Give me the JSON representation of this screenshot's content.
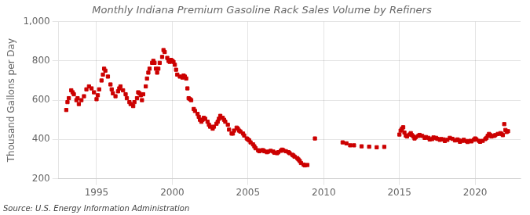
{
  "chart_data": {
    "type": "scatter",
    "title": "Monthly Indiana Premium Gasoline Rack Sales Volume by Refiners",
    "ylabel": "Thousand Gallons per Day",
    "annotations": [
      "Source: U.S. Energy Information Administration"
    ],
    "color": "#cc0000",
    "marker": "square",
    "grid": true,
    "xlim": [
      1992.5,
      2023.0
    ],
    "ylim": [
      200,
      1000
    ],
    "xticks": [
      1995,
      2000,
      2005,
      2010,
      2015,
      2020
    ],
    "yticks": [
      200,
      400,
      600,
      800,
      {
        "value": 1000,
        "label": "1,000"
      }
    ],
    "x": [
      1993.0,
      1993.08,
      1993.17,
      1993.33,
      1993.42,
      1993.5,
      1993.67,
      1993.75,
      1993.83,
      1994.0,
      1994.17,
      1994.33,
      1994.5,
      1994.67,
      1994.83,
      1995.0,
      1995.08,
      1995.17,
      1995.33,
      1995.42,
      1995.5,
      1995.58,
      1995.75,
      1995.92,
      1996.0,
      1996.08,
      1996.25,
      1996.42,
      1996.5,
      1996.58,
      1996.75,
      1996.92,
      1997.0,
      1997.17,
      1997.25,
      1997.42,
      1997.5,
      1997.67,
      1997.75,
      1997.83,
      1997.92,
      1998.0,
      1998.08,
      1998.25,
      1998.33,
      1998.42,
      1998.5,
      1998.67,
      1998.75,
      1998.83,
      1998.92,
      1999.0,
      1999.08,
      1999.17,
      1999.33,
      1999.42,
      1999.5,
      1999.67,
      1999.75,
      1999.83,
      1999.92,
      2000.0,
      2000.08,
      2000.17,
      2000.25,
      2000.33,
      2000.5,
      2000.67,
      2000.75,
      2000.83,
      2000.92,
      2001.0,
      2001.08,
      2001.17,
      2001.25,
      2001.42,
      2001.5,
      2001.67,
      2001.75,
      2001.83,
      2001.92,
      2002.0,
      2002.08,
      2002.17,
      2002.33,
      2002.42,
      2002.5,
      2002.67,
      2002.75,
      2002.92,
      2003.0,
      2003.08,
      2003.17,
      2003.33,
      2003.42,
      2003.5,
      2003.67,
      2003.75,
      2003.92,
      2004.0,
      2004.08,
      2004.25,
      2004.33,
      2004.42,
      2004.5,
      2004.67,
      2004.75,
      2004.92,
      2005.0,
      2005.08,
      2005.17,
      2005.33,
      2005.42,
      2005.5,
      2005.67,
      2005.75,
      2005.92,
      2006.0,
      2006.08,
      2006.25,
      2006.33,
      2006.5,
      2006.67,
      2006.75,
      2006.92,
      2007.0,
      2007.17,
      2007.25,
      2007.33,
      2007.5,
      2007.67,
      2007.75,
      2007.92,
      2008.0,
      2008.08,
      2008.25,
      2008.33,
      2008.42,
      2008.5,
      2008.67,
      2008.75,
      2008.92,
      2009.42,
      2011.25,
      2011.5,
      2011.75,
      2012.0,
      2012.5,
      2013.0,
      2013.5,
      2014.0,
      2015.0,
      2015.08,
      2015.17,
      2015.25,
      2015.33,
      2015.42,
      2015.5,
      2015.67,
      2015.75,
      2015.83,
      2015.92,
      2016.0,
      2016.08,
      2016.25,
      2016.33,
      2016.5,
      2016.67,
      2016.75,
      2016.92,
      2017.0,
      2017.17,
      2017.25,
      2017.42,
      2017.5,
      2017.67,
      2017.75,
      2017.92,
      2018.0,
      2018.17,
      2018.33,
      2018.5,
      2018.67,
      2018.83,
      2018.92,
      2019.0,
      2019.17,
      2019.25,
      2019.42,
      2019.5,
      2019.67,
      2019.75,
      2019.92,
      2020.0,
      2020.08,
      2020.25,
      2020.33,
      2020.5,
      2020.67,
      2020.75,
      2020.83,
      2020.92,
      2021.0,
      2021.08,
      2021.25,
      2021.33,
      2021.5,
      2021.67,
      2021.75,
      2021.83,
      2021.92,
      2022.0,
      2022.08,
      2022.17
    ],
    "values": [
      550,
      590,
      610,
      650,
      640,
      630,
      600,
      610,
      580,
      600,
      620,
      655,
      670,
      660,
      640,
      605,
      625,
      655,
      700,
      730,
      760,
      750,
      720,
      680,
      655,
      635,
      620,
      645,
      660,
      670,
      650,
      630,
      610,
      590,
      580,
      570,
      590,
      610,
      640,
      635,
      625,
      600,
      630,
      670,
      710,
      740,
      760,
      790,
      800,
      790,
      760,
      740,
      760,
      790,
      820,
      855,
      845,
      815,
      800,
      795,
      805,
      800,
      795,
      780,
      755,
      730,
      720,
      715,
      725,
      720,
      710,
      660,
      610,
      605,
      600,
      555,
      545,
      530,
      515,
      500,
      490,
      500,
      510,
      505,
      490,
      475,
      465,
      455,
      465,
      480,
      490,
      505,
      520,
      510,
      500,
      490,
      475,
      450,
      430,
      430,
      445,
      460,
      455,
      445,
      440,
      430,
      420,
      405,
      400,
      395,
      385,
      375,
      365,
      355,
      345,
      340,
      345,
      345,
      340,
      335,
      338,
      342,
      338,
      332,
      330,
      335,
      342,
      348,
      345,
      340,
      335,
      330,
      322,
      318,
      312,
      305,
      298,
      290,
      280,
      272,
      268,
      270,
      405,
      385,
      380,
      370,
      370,
      365,
      363,
      360,
      362,
      425,
      445,
      455,
      462,
      435,
      420,
      415,
      425,
      432,
      422,
      415,
      405,
      412,
      418,
      423,
      418,
      408,
      412,
      408,
      400,
      402,
      410,
      408,
      403,
      398,
      402,
      400,
      392,
      398,
      408,
      403,
      395,
      400,
      396,
      388,
      393,
      398,
      392,
      387,
      393,
      390,
      398,
      405,
      400,
      393,
      388,
      393,
      402,
      408,
      418,
      428,
      422,
      415,
      418,
      422,
      428,
      432,
      428,
      422,
      478,
      448,
      438,
      442
    ]
  }
}
